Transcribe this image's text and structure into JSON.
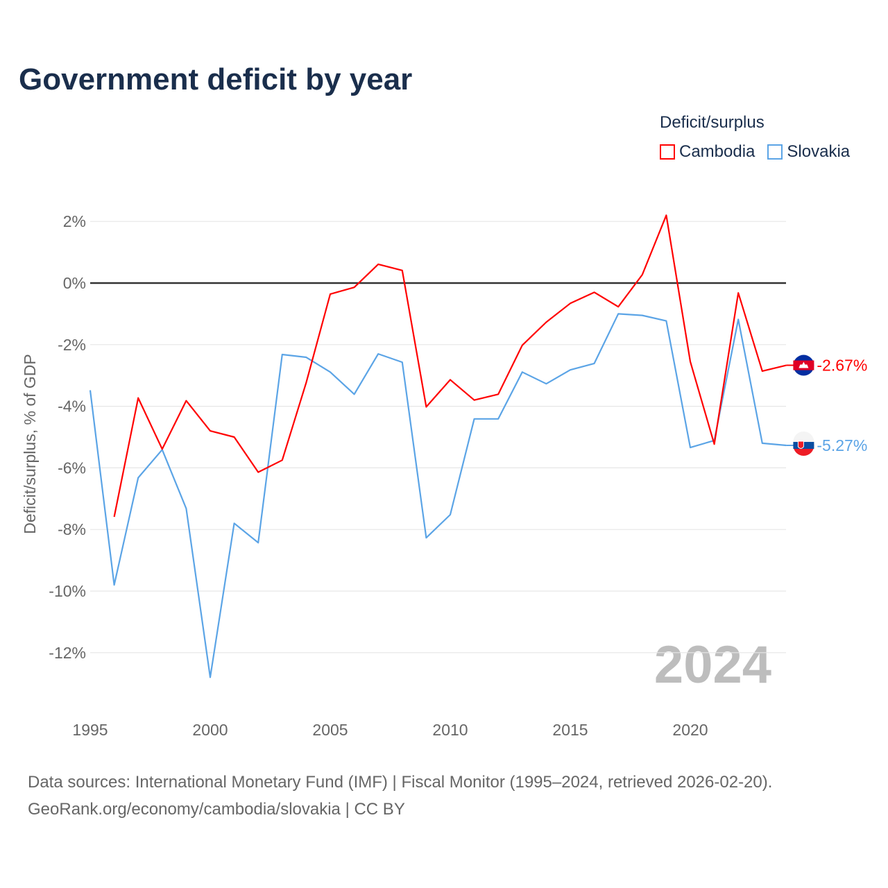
{
  "title": "Government deficit by year",
  "legend": {
    "title": "Deficit/surplus",
    "items": [
      {
        "name": "Cambodia",
        "color": "#ff0000"
      },
      {
        "name": "Slovakia",
        "color": "#5ba4e6"
      }
    ]
  },
  "watermark_year": "2024",
  "source_line1": "Data sources: International Monetary Fund (IMF) | Fiscal Monitor (1995–2024, retrieved 2026-02-20).",
  "source_line2": "GeoRank.org/economy/cambodia/slovakia | CC BY",
  "chart_data": {
    "type": "line",
    "title": "Government deficit by year",
    "xlabel": "",
    "ylabel": "Deficit/surplus, % of GDP",
    "xlim": [
      1995,
      2024
    ],
    "ylim": [
      -14,
      2.5
    ],
    "x_ticks": [
      1995,
      2000,
      2005,
      2010,
      2015,
      2020
    ],
    "x_tick_labels": [
      "1995",
      "2000",
      "2005",
      "2010",
      "2015",
      "2020"
    ],
    "y_ticks": [
      2,
      0,
      -2,
      -4,
      -6,
      -8,
      -10,
      -12
    ],
    "y_tick_labels": [
      "2%",
      "0%",
      "-2%",
      "-4%",
      "-6%",
      "-8%",
      "-10%",
      "-12%"
    ],
    "grid": true,
    "legend_position": "top-right",
    "series": [
      {
        "name": "Cambodia",
        "color": "#ff0000",
        "end_label": "-2.67%",
        "x": [
          1996,
          1997,
          1998,
          1999,
          2000,
          2001,
          2002,
          2003,
          2004,
          2005,
          2006,
          2007,
          2008,
          2009,
          2010,
          2011,
          2012,
          2013,
          2014,
          2015,
          2016,
          2017,
          2018,
          2019,
          2020,
          2021,
          2022,
          2023,
          2024
        ],
        "values": [
          -7.59,
          -3.73,
          -5.39,
          -3.82,
          -4.8,
          -5.0,
          -6.14,
          -5.75,
          -3.23,
          -0.36,
          -0.14,
          0.61,
          0.41,
          -4.02,
          -3.14,
          -3.8,
          -3.61,
          -2.02,
          -1.27,
          -0.66,
          -0.3,
          -0.77,
          0.27,
          2.2,
          -2.55,
          -5.23,
          -0.32,
          -2.86,
          -2.67
        ]
      },
      {
        "name": "Slovakia",
        "color": "#5ba4e6",
        "end_label": "-5.27%",
        "x": [
          1995,
          1996,
          1997,
          1998,
          1999,
          2000,
          2001,
          2002,
          2003,
          2004,
          2005,
          2006,
          2007,
          2008,
          2009,
          2010,
          2011,
          2012,
          2013,
          2014,
          2015,
          2016,
          2017,
          2018,
          2019,
          2020,
          2021,
          2022,
          2023,
          2024
        ],
        "values": [
          -3.48,
          -9.8,
          -6.32,
          -5.41,
          -7.32,
          -12.8,
          -7.8,
          -8.43,
          -2.32,
          -2.41,
          -2.89,
          -3.61,
          -2.3,
          -2.57,
          -8.27,
          -7.52,
          -4.41,
          -4.41,
          -2.89,
          -3.27,
          -2.82,
          -2.61,
          -1.0,
          -1.05,
          -1.23,
          -5.34,
          -5.11,
          -1.18,
          -5.2,
          -5.27
        ]
      }
    ]
  }
}
